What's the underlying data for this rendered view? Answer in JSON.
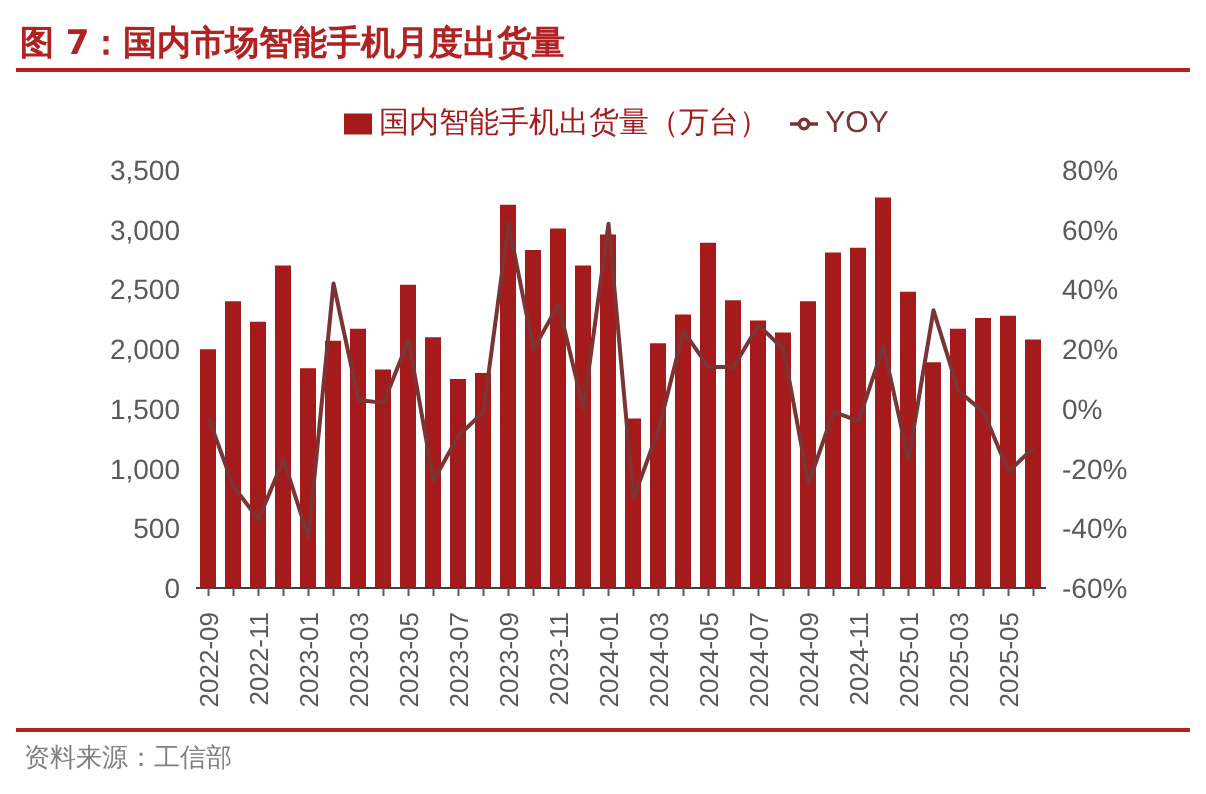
{
  "chart_data": {
    "type": "bar",
    "title": "图 7：国内市场智能手机月度出货量",
    "categories": [
      "2022-09",
      null,
      "2022-11",
      null,
      "2023-01",
      null,
      "2023-03",
      null,
      "2023-05",
      null,
      "2023-07",
      null,
      "2023-09",
      null,
      "2023-11",
      null,
      "2024-01",
      null,
      "2024-03",
      null,
      "2024-05",
      null,
      "2024-07",
      null,
      "2024-09",
      null,
      "2024-11",
      null,
      "2025-01",
      null,
      "2025-03",
      null,
      "2025-05",
      null
    ],
    "series": [
      {
        "name": "国内智能手机出货量（万台）",
        "color": "#a51b1b",
        "values": [
          2000,
          2400,
          2230,
          2700,
          1840,
          2070,
          2170,
          1830,
          2540,
          2100,
          1750,
          1800,
          3210,
          2830,
          3010,
          2700,
          2960,
          1420,
          2050,
          2290,
          2890,
          2410,
          2240,
          2140,
          2400,
          2810,
          2850,
          3270,
          2480,
          1890,
          2170,
          2260,
          2280,
          2080
        ]
      },
      {
        "name": "YOY",
        "type": "line",
        "axis": "y2",
        "color": "#7b3333",
        "values": [
          -3,
          -26,
          -37,
          -17,
          -43,
          42,
          3,
          2,
          23,
          -24,
          -9,
          -1,
          62,
          20,
          35,
          0,
          62,
          -30,
          -7,
          26,
          14,
          14,
          28,
          20,
          -25,
          -1,
          -4,
          21,
          -17,
          33,
          6,
          -1,
          -21,
          -13
        ]
      }
    ],
    "ylim": [
      0,
      3500
    ],
    "yticks": [
      0,
      500,
      {
        "value": 1000,
        "label": "1,000"
      },
      {
        "value": 1500,
        "label": "1,500"
      },
      {
        "value": 2000,
        "label": "2,000"
      },
      {
        "value": 2500,
        "label": "2,500"
      },
      {
        "value": 3000,
        "label": "3,000"
      },
      {
        "value": 3500,
        "label": "3,500"
      }
    ],
    "y2lim": [
      -60,
      80
    ],
    "y2ticks": [
      {
        "value": -60,
        "label": "-60%"
      },
      {
        "value": -40,
        "label": "-40%"
      },
      {
        "value": -20,
        "label": "-20%"
      },
      {
        "value": 0,
        "label": "0%"
      },
      {
        "value": 20,
        "label": "20%"
      },
      {
        "value": 40,
        "label": "40%"
      },
      {
        "value": 60,
        "label": "60%"
      },
      {
        "value": 80,
        "label": "80%"
      }
    ],
    "legend": "top",
    "grid": false,
    "marker": "none",
    "annotations": [
      "资料来源：工信部"
    ]
  }
}
